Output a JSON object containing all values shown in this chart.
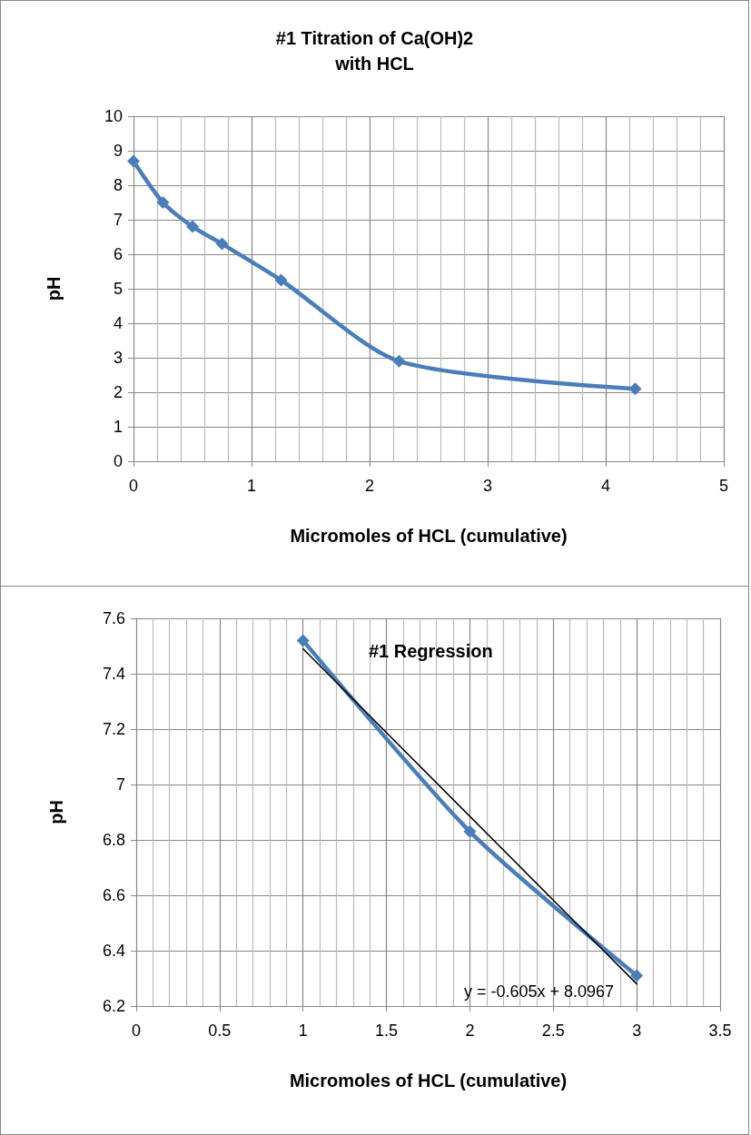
{
  "chart_data": [
    {
      "type": "line",
      "title": "#1 Titration of Ca(OH)2\nwith HCL",
      "xlabel": "Micromoles of HCL (cumulative)",
      "ylabel": "pH",
      "x": [
        0,
        0.25,
        0.5,
        0.75,
        1.25,
        2.25,
        4.25
      ],
      "series": [
        {
          "color": "#4a7ebb",
          "values": [
            8.7,
            7.5,
            6.8,
            6.3,
            5.25,
            2.9,
            2.1
          ]
        }
      ],
      "xlim": [
        0,
        5
      ],
      "xticks": [
        0,
        1,
        2,
        3,
        4,
        5
      ],
      "ylim": [
        0,
        10
      ],
      "yticks": [
        0,
        1,
        2,
        3,
        4,
        5,
        6,
        7,
        8,
        9,
        10
      ],
      "grid": true,
      "marker": "diamond"
    },
    {
      "type": "line",
      "title": "#1 Regression",
      "xlabel": "Micromoles of HCL (cumulative)",
      "ylabel": "pH",
      "x": [
        1,
        2,
        3
      ],
      "series": [
        {
          "color": "#4a7ebb",
          "values": [
            7.52,
            6.83,
            6.31
          ]
        },
        {
          "color": "#000000",
          "x": [
            1,
            3
          ],
          "values": [
            7.49,
            6.28
          ],
          "marker": "none"
        }
      ],
      "xlim": [
        0,
        3.5
      ],
      "xticks": [
        0,
        0.5,
        1,
        1.5,
        2,
        2.5,
        3,
        3.5
      ],
      "ylim": [
        6.2,
        7.6
      ],
      "yticks": [
        6.2,
        6.4,
        6.6,
        6.8,
        7,
        7.2,
        7.4,
        7.6
      ],
      "grid": true,
      "marker": "diamond",
      "annotations": [
        "y = -0.605x + 8.0967"
      ]
    }
  ]
}
